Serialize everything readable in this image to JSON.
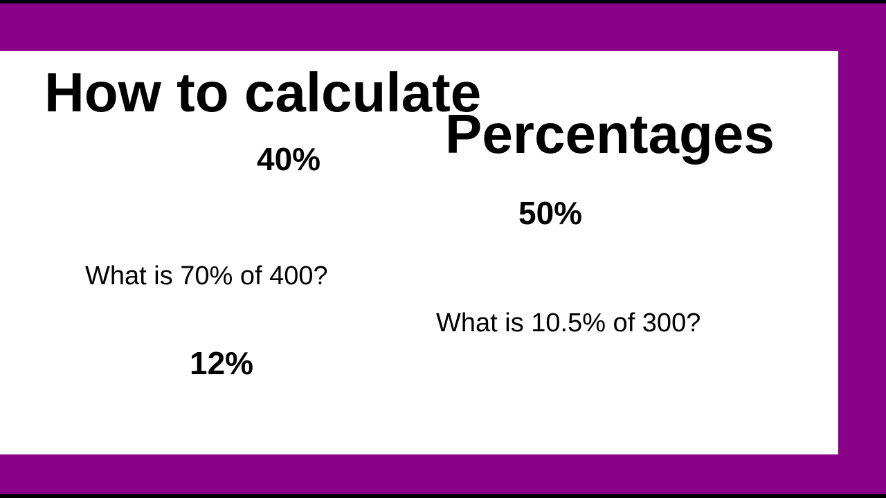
{
  "colors": {
    "frame": "#8b0089",
    "card": "#ffffff",
    "text": "#000000"
  },
  "title": {
    "line1": "How to calculate",
    "line2": "Percentages"
  },
  "percentages": [
    "40%",
    "50%",
    "12%"
  ],
  "questions": [
    "What is 70% of 400?",
    "What is 10.5% of 300?"
  ]
}
